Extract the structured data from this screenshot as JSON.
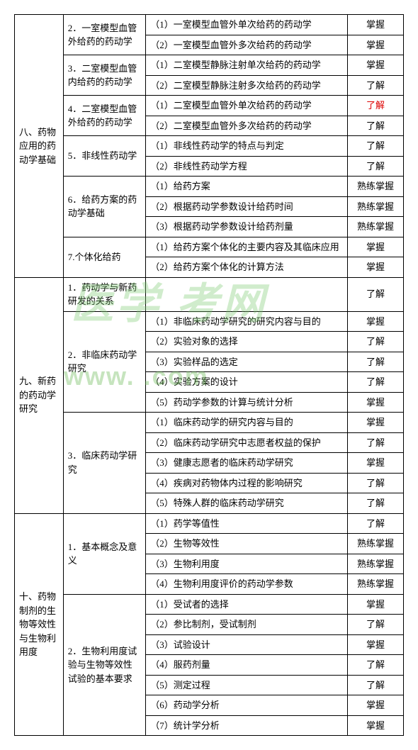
{
  "watermark": {
    "text1": "医学 考网",
    "text2": "www.                    .com"
  },
  "sections": [
    {
      "title": "八、药物应用的药动学基础",
      "subs": [
        {
          "title": "2．一室模型血管外给药的药动学",
          "items": [
            {
              "t": "（1）一室模型血管外单次给药的药动学",
              "lv": "掌握"
            },
            {
              "t": "（2）一室模型血管外多次给药的药动学",
              "lv": "掌握"
            }
          ]
        },
        {
          "title": "3．二室模型血管内给药的药动学",
          "items": [
            {
              "t": "（1）二室模型静脉注射单次给药的药动学",
              "lv": "掌握"
            },
            {
              "t": "（2）二室模型静脉注射多次给药的药动学",
              "lv": "了解"
            }
          ]
        },
        {
          "title": "4．二室模型血管外给药的药动学",
          "items": [
            {
              "t": "（1）二室模型血管外单次给药的药动学",
              "lv": "了解",
              "red": true
            },
            {
              "t": "（2）二室模型血管外多次给药的药动学",
              "lv": "了解"
            }
          ]
        },
        {
          "title": "5．非线性药动学",
          "items": [
            {
              "t": "（1）非线性药动学的特点与判定",
              "lv": "了解"
            },
            {
              "t": "（2）非线性药动学方程",
              "lv": "了解"
            }
          ]
        },
        {
          "title": "6．给药方案的药动学基础",
          "items": [
            {
              "t": "（1）给药方案",
              "lv": "熟练掌握"
            },
            {
              "t": "（2）根据药动学参数设计给药时间",
              "lv": "熟练掌握"
            },
            {
              "t": "（3）根据药动学参数设计给药剂量",
              "lv": "熟练掌握"
            }
          ]
        },
        {
          "title": "7.个体化给药",
          "items": [
            {
              "t": "（1）给药方案个体化的主要内容及其临床应用",
              "lv": "掌握"
            },
            {
              "t": "（2）给药方案个体化的计算方法",
              "lv": "掌握"
            }
          ]
        }
      ]
    },
    {
      "title": "九、新药的药动学研究",
      "subs": [
        {
          "title": "1．药动学与新药研发的关系",
          "items": [
            {
              "t": "",
              "lv": "了解"
            }
          ]
        },
        {
          "title": "2．非临床药动学研究",
          "items": [
            {
              "t": "（1）非临床药动学研究的研究内容与目的",
              "lv": "掌握"
            },
            {
              "t": "（2）实验对象的选择",
              "lv": "了解"
            },
            {
              "t": "（3）实验样品的选定",
              "lv": "了解"
            },
            {
              "t": "（4）实验方案的设计",
              "lv": "了解"
            },
            {
              "t": "（5）药动学参数的计算与统计分析",
              "lv": "掌握"
            }
          ]
        },
        {
          "title": "3．临床药动学研究",
          "items": [
            {
              "t": "（1）临床药动学的研究内容与目的",
              "lv": "掌握"
            },
            {
              "t": "（2）临床药动学研究中志愿者权益的保护",
              "lv": "了解"
            },
            {
              "t": "（3）健康志愿者的临床药动学研究",
              "lv": "掌握"
            },
            {
              "t": "（4）疾病对药物体内过程的影响研究",
              "lv": "了解"
            },
            {
              "t": "（5）特殊人群的临床药动学研究",
              "lv": "了解"
            }
          ]
        }
      ]
    },
    {
      "title": "十、药物制剂的生物等效性与生物利用度",
      "subs": [
        {
          "title": "1．基本概念及意义",
          "items": [
            {
              "t": "（1）药学等值性",
              "lv": "了解"
            },
            {
              "t": "（2）生物等效性",
              "lv": "熟练掌握"
            },
            {
              "t": "（3）生物利用度",
              "lv": "熟练掌握"
            },
            {
              "t": "（4）生物利用度评价的药动学参数",
              "lv": "熟练掌握"
            }
          ]
        },
        {
          "title": "2．生物利用度试验与生物等效性试验的基本要求",
          "items": [
            {
              "t": "（1）受试者的选择",
              "lv": "掌握"
            },
            {
              "t": "（2）参比制剂，受试制剂",
              "lv": "了解"
            },
            {
              "t": "（3）试验设计",
              "lv": "掌握"
            },
            {
              "t": "（4）服药剂量",
              "lv": "了解"
            },
            {
              "t": "（5）测定过程",
              "lv": "了解"
            },
            {
              "t": "（6）药动学分析",
              "lv": "掌握"
            },
            {
              "t": "（7）统计学分析",
              "lv": "掌握"
            }
          ]
        }
      ]
    }
  ]
}
